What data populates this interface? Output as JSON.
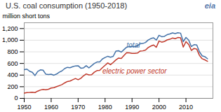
{
  "chart_data": {
    "type": "line",
    "title": "U.S. coal consumption (1950-2018)",
    "source": "eia",
    "ylabel": "million short tons",
    "x": [
      1950,
      1951,
      1952,
      1953,
      1954,
      1955,
      1956,
      1957,
      1958,
      1959,
      1960,
      1961,
      1962,
      1963,
      1964,
      1965,
      1966,
      1967,
      1968,
      1969,
      1970,
      1971,
      1972,
      1973,
      1974,
      1975,
      1976,
      1977,
      1978,
      1979,
      1980,
      1981,
      1982,
      1983,
      1984,
      1985,
      1986,
      1987,
      1988,
      1989,
      1990,
      1991,
      1992,
      1993,
      1994,
      1995,
      1996,
      1997,
      1998,
      1999,
      2000,
      2001,
      2002,
      2003,
      2004,
      2005,
      2006,
      2007,
      2008,
      2009,
      2010,
      2011,
      2012,
      2013,
      2014,
      2015,
      2016,
      2017,
      2018
    ],
    "series": [
      {
        "name": "total",
        "color": "#4472a8",
        "values": [
          494,
          503,
          466,
          448,
          392,
          462,
          490,
          484,
          416,
          410,
          416,
          398,
          418,
          449,
          472,
          512,
          534,
          527,
          545,
          558,
          561,
          519,
          525,
          562,
          523,
          562,
          601,
          625,
          625,
          677,
          703,
          723,
          708,
          722,
          812,
          819,
          795,
          838,
          880,
          892,
          895,
          888,
          903,
          940,
          944,
          962,
          1004,
          1028,
          1040,
          1002,
          1084,
          1060,
          1066,
          1095,
          1108,
          1126,
          1114,
          1128,
          1121,
          975,
          1048,
          1003,
          890,
          924,
          918,
          800,
          731,
          717,
          680
        ]
      },
      {
        "name": "electric power sector",
        "color": "#c0392b",
        "values": [
          91,
          100,
          101,
          104,
          99,
          124,
          143,
          154,
          147,
          156,
          177,
          183,
          201,
          218,
          236,
          265,
          290,
          298,
          321,
          341,
          320,
          345,
          388,
          420,
          404,
          406,
          450,
          477,
          481,
          527,
          569,
          609,
          579,
          617,
          661,
          693,
          686,
          737,
          786,
          783,
          774,
          773,
          779,
          813,
          817,
          830,
          874,
          900,
          918,
          878,
          986,
          967,
          977,
          1005,
          1016,
          1037,
          1026,
          1046,
          1042,
          882,
          975,
          928,
          824,
          858,
          847,
          739,
          681,
          662,
          637
        ]
      }
    ],
    "annotations": [
      {
        "text": "total",
        "x": 1988,
        "y": 870
      },
      {
        "text": "electric power sector",
        "x": 1979,
        "y": 430
      }
    ],
    "xlim": [
      1950,
      2020
    ],
    "xticks": [
      1950,
      1960,
      1970,
      1980,
      1990,
      2000,
      2010
    ],
    "ylim": [
      0,
      1300
    ],
    "yticks": [
      0,
      200,
      400,
      600,
      800,
      {
        "value": 1000,
        "label": "1,000"
      },
      {
        "value": 1200,
        "label": "1,200"
      }
    ],
    "grid": true
  }
}
